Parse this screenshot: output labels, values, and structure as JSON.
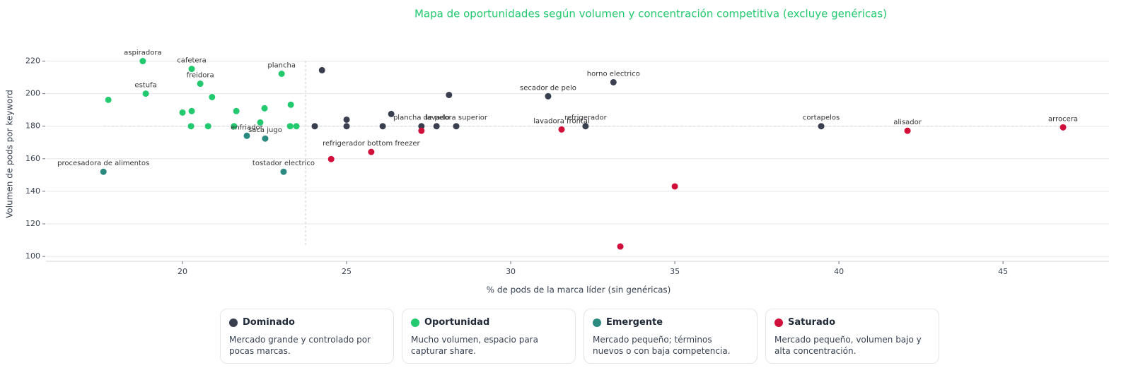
{
  "chart_data": {
    "type": "scatter",
    "title": "Mapa de oportunidades según volumen y concentración competitiva (excluye genéricas)",
    "x_label": "% de pods de la marca líder (sin genéricas)",
    "y_label": "Volumen de pods por keyword",
    "xlim": [
      15.84,
      48.23
    ],
    "ylim": [
      97,
      225
    ],
    "xticks": [
      20,
      25,
      30,
      35,
      40,
      45
    ],
    "yticks": [
      100,
      120,
      140,
      160,
      180,
      200,
      220
    ],
    "grid": true,
    "reference_lines": {
      "x": 23.75,
      "y": 180
    },
    "title_color": "#22c96e",
    "series": [
      {
        "name": "Dominado",
        "color": "#3a3f4f",
        "description": "Mercado grande y controlado por pocas marcas.",
        "x": [
          24.25,
          24.03,
          25,
          25,
          26.36,
          26.1,
          27.28,
          27.74,
          28.12,
          28.34,
          31.14,
          33.13,
          32.28,
          39.46
        ],
        "y": [
          214.4,
          180,
          184,
          180,
          187.5,
          180,
          180,
          180,
          199.2,
          180,
          198.4,
          207,
          180,
          180
        ],
        "labels": [
          null,
          null,
          null,
          null,
          null,
          null,
          "plancha de pelo",
          null,
          null,
          "lavadora superior",
          "secador de pelo",
          "horno electrico",
          "refrigerador",
          "cortapelos"
        ]
      },
      {
        "name": "Oportunidad",
        "color": "#22c96e",
        "description": "Mucho volumen, espacio para capturar share.",
        "x": [
          18.79,
          20.28,
          20.54,
          23.02,
          18.88,
          17.74,
          20.9,
          20,
          20.28,
          21.64,
          22.5,
          23.3,
          22.37,
          20.26,
          20.78,
          21.57,
          23.28,
          23.47
        ],
        "y": [
          220,
          215.2,
          206.1,
          212.2,
          200,
          196.2,
          197.9,
          188.4,
          189.3,
          189.3,
          191,
          193.2,
          182.3,
          180,
          180,
          180,
          180,
          180
        ],
        "labels": [
          "aspiradora",
          "cafetera",
          "freidora",
          "plancha",
          "estufa",
          null,
          null,
          null,
          null,
          null,
          null,
          null,
          null,
          null,
          null,
          null,
          null,
          null
        ]
      },
      {
        "name": "Emergente",
        "color": "#2a8a80",
        "description": "Mercado pequeño; términos nuevos o con baja competencia.",
        "x": [
          17.59,
          21.96,
          22.52,
          23.08
        ],
        "y": [
          152,
          174.1,
          172.4,
          152
        ],
        "labels": [
          "procesadora de alimentos",
          "enfriador",
          "saca jugo",
          "tostador electrico"
        ]
      },
      {
        "name": "Saturado",
        "color": "#d0103a",
        "description": "Mercado pequeño, volumen bajo y alta concentración.",
        "x": [
          27.28,
          24.53,
          25.75,
          31.55,
          35,
          33.34,
          42.09,
          46.83
        ],
        "y": [
          177.2,
          159.8,
          164.2,
          178,
          143,
          106.1,
          177.2,
          179.3
        ],
        "labels": [
          null,
          null,
          "refrigerador bottom freezer",
          "lavadora frontal",
          null,
          null,
          "alisador",
          "arrocera"
        ]
      }
    ]
  }
}
